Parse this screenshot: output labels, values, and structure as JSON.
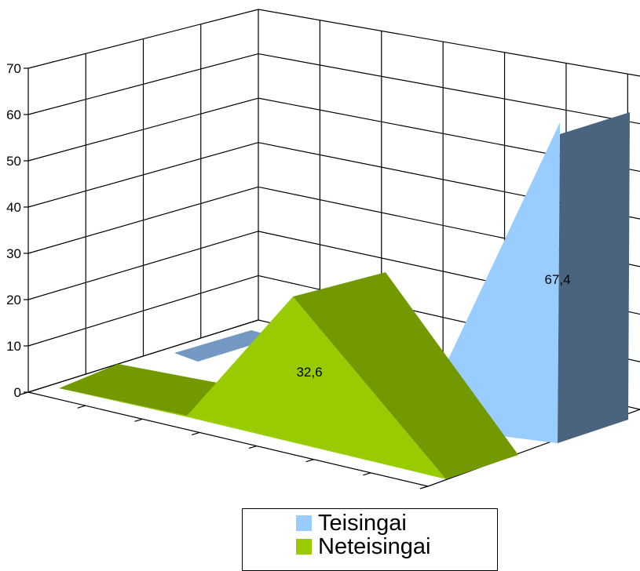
{
  "chart_data": {
    "type": "area",
    "view": "3d",
    "categories": [
      "",
      "",
      "",
      ""
    ],
    "series": [
      {
        "name": "Teisingai",
        "values": [
          0,
          0,
          0,
          67.4
        ],
        "color": "#99ccff",
        "side_color": "#4a6480",
        "top_color": "#7399c3"
      },
      {
        "name": "Neteisingai",
        "values": [
          0,
          0,
          32.6,
          0
        ],
        "color": "#99cc00",
        "side_color": "#739900"
      }
    ],
    "data_labels": [
      "67,4",
      "32,6"
    ],
    "y_ticks": [
      "0",
      "10",
      "20",
      "30",
      "40",
      "50",
      "60",
      "70"
    ],
    "ylim": [
      0,
      70
    ],
    "grid": true,
    "legend_position": "bottom"
  }
}
